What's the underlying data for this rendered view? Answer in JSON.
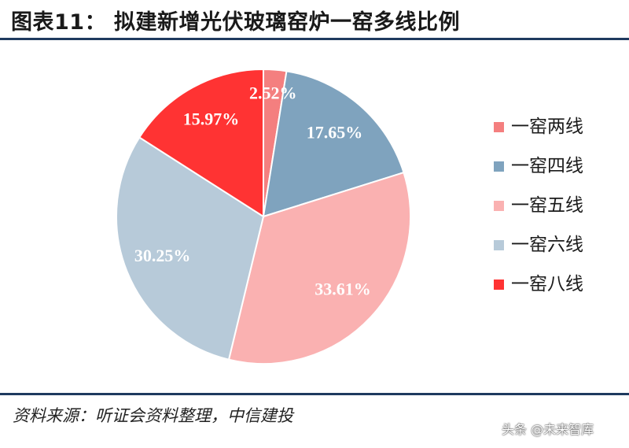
{
  "header": {
    "title": "图表11：  拟建新增光伏玻璃窑炉一窑多线比例"
  },
  "chart_data": {
    "type": "pie",
    "title": "拟建新增光伏玻璃窑炉一窑多线比例",
    "slices": [
      {
        "name": "一窑两线",
        "value": 2.52,
        "label": "2.52%",
        "color": "#f47f7f"
      },
      {
        "name": "一窑四线",
        "value": 17.65,
        "label": "17.65%",
        "color": "#7fa3be"
      },
      {
        "name": "一窑五线",
        "value": 33.61,
        "label": "33.61%",
        "color": "#fab1b1"
      },
      {
        "name": "一窑六线",
        "value": 30.25,
        "label": "30.25%",
        "color": "#b7cad9"
      },
      {
        "name": "一窑八线",
        "value": 15.97,
        "label": "15.97%",
        "color": "#ff3333"
      }
    ],
    "legend_position": "right"
  },
  "footer": {
    "source": "资料来源：听证会资料整理，中信建投",
    "watermark": "头条 @未来智库"
  }
}
